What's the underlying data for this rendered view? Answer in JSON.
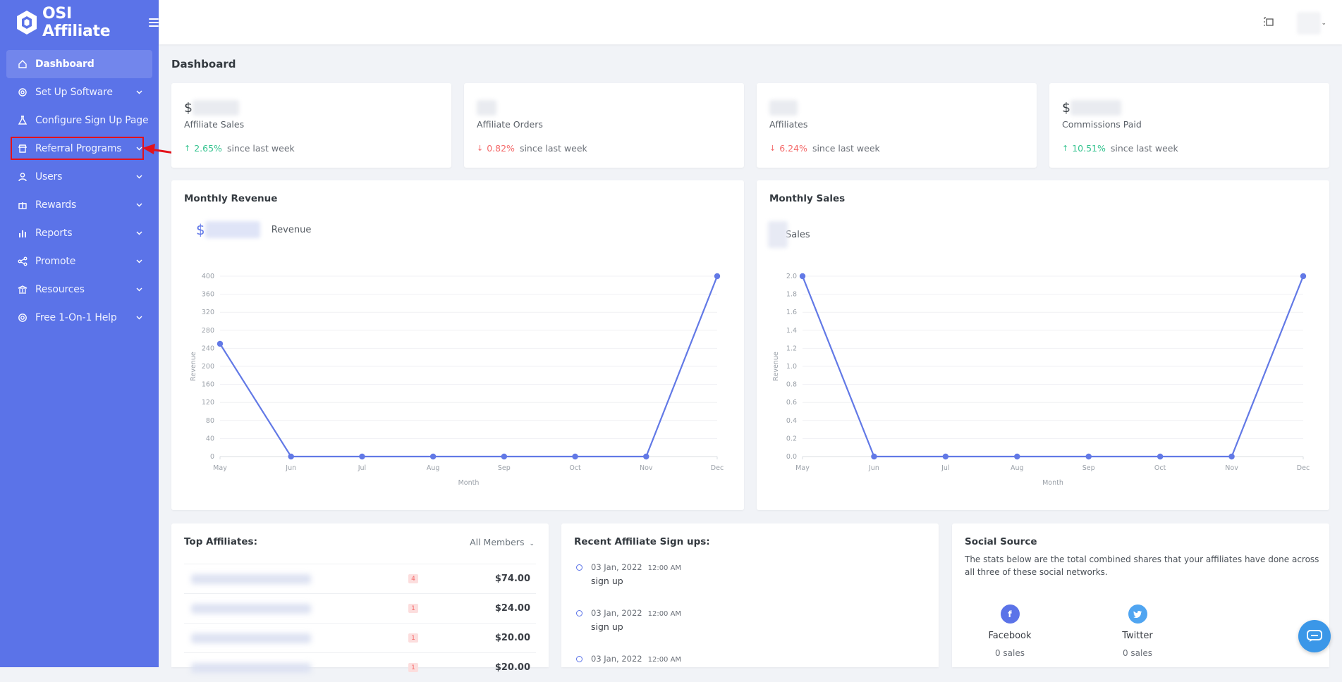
{
  "brand": {
    "name": "OSI Affiliate"
  },
  "sidebar": {
    "items": [
      {
        "label": "Dashboard",
        "icon": "home-icon",
        "active": true,
        "has_chevron": false
      },
      {
        "label": "Set Up Software",
        "icon": "target-icon",
        "has_chevron": true
      },
      {
        "label": "Configure Sign Up Page",
        "icon": "flask-icon",
        "has_chevron": false
      },
      {
        "label": "Referral Programs",
        "icon": "store-icon",
        "has_chevron": true
      },
      {
        "label": "Users",
        "icon": "user-icon",
        "has_chevron": true
      },
      {
        "label": "Rewards",
        "icon": "gift-icon",
        "has_chevron": true
      },
      {
        "label": "Reports",
        "icon": "bar-chart-icon",
        "has_chevron": true
      },
      {
        "label": "Promote",
        "icon": "share-icon",
        "has_chevron": true
      },
      {
        "label": "Resources",
        "icon": "bank-icon",
        "has_chevron": true
      },
      {
        "label": "Free 1-On-1 Help",
        "icon": "lifebuoy-icon",
        "has_chevron": true
      }
    ]
  },
  "page": {
    "title": "Dashboard"
  },
  "stats": [
    {
      "prefix": "$",
      "label": "Affiliate Sales",
      "change": "2.65%",
      "direction": "up",
      "suffix": "since last week"
    },
    {
      "prefix": "",
      "label": "Affiliate Orders",
      "change": "0.82%",
      "direction": "down",
      "suffix": "since last week"
    },
    {
      "prefix": "",
      "label": "Affiliates",
      "change": "6.24%",
      "direction": "down",
      "suffix": "since last week"
    },
    {
      "prefix": "$",
      "label": "Commissions Paid",
      "change": "10.51%",
      "direction": "up",
      "suffix": "since last week"
    }
  ],
  "revenue_card": {
    "title": "Monthly Revenue",
    "prefix": "$",
    "legend": "Revenue"
  },
  "sales_card": {
    "title": "Monthly Sales",
    "legend": "Sales"
  },
  "chart_data": [
    {
      "type": "line",
      "title": "Monthly Revenue",
      "xlabel": "Month",
      "ylabel": "Revenue",
      "categories": [
        "May",
        "Jun",
        "Jul",
        "Aug",
        "Sep",
        "Oct",
        "Nov",
        "Dec"
      ],
      "series": [
        {
          "name": "Revenue",
          "values": [
            250,
            0,
            0,
            0,
            0,
            0,
            0,
            400
          ]
        }
      ],
      "ylim": [
        0,
        400
      ],
      "yticks": [
        0,
        40,
        80,
        120,
        160,
        200,
        240,
        280,
        320,
        360,
        400
      ],
      "color": "#6279e6"
    },
    {
      "type": "line",
      "title": "Monthly Sales",
      "xlabel": "Month",
      "ylabel": "Revenue",
      "categories": [
        "May",
        "Jun",
        "Jul",
        "Aug",
        "Sep",
        "Oct",
        "Nov",
        "Dec"
      ],
      "series": [
        {
          "name": "Sales",
          "values": [
            2,
            0,
            0,
            0,
            0,
            0,
            0,
            2
          ]
        }
      ],
      "ylim": [
        0,
        2
      ],
      "yticks": [
        "0.0",
        "0.2",
        "0.4",
        "0.6",
        "0.8",
        "1.0",
        "1.2",
        "1.4",
        "1.6",
        "1.8",
        "2.0"
      ],
      "color": "#6279e6"
    }
  ],
  "top_affiliates": {
    "title": "Top Affiliates:",
    "filter": "All Members",
    "rows": [
      {
        "count": "4",
        "amount": "$74.00"
      },
      {
        "count": "1",
        "amount": "$24.00"
      },
      {
        "count": "1",
        "amount": "$20.00"
      },
      {
        "count": "1",
        "amount": "$20.00"
      }
    ]
  },
  "recent_signups": {
    "title": "Recent Affiliate Sign ups:",
    "items": [
      {
        "date": "03 Jan, 2022",
        "time": "12:00 AM",
        "text": "sign up"
      },
      {
        "date": "03 Jan, 2022",
        "time": "12:00 AM",
        "text": "sign up"
      },
      {
        "date": "03 Jan, 2022",
        "time": "12:00 AM",
        "text": ""
      }
    ]
  },
  "social_source": {
    "title": "Social Source",
    "description": "The stats below are the total combined shares that your affiliates have done across all three of these social networks.",
    "networks": [
      {
        "name": "Facebook",
        "count": "0 sales",
        "color": "#5b73e8",
        "icon": "facebook-icon"
      },
      {
        "name": "Twitter",
        "count": "0 sales",
        "color": "#50a5f1",
        "icon": "twitter-icon"
      }
    ]
  }
}
